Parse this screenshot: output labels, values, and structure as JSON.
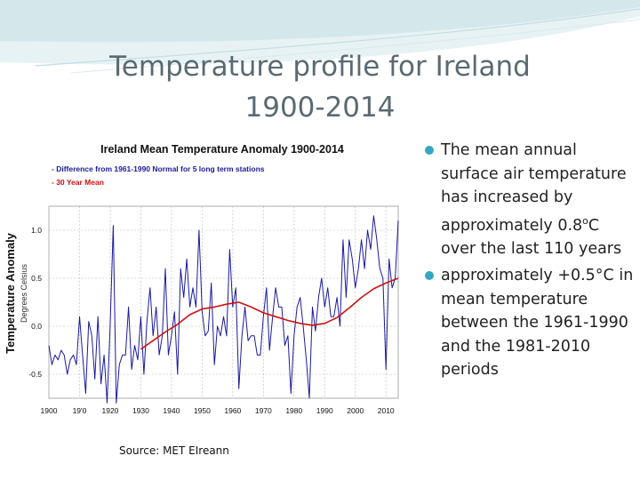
{
  "slide": {
    "title_line1": "Temperature profile for Ireland",
    "title_line2": "1900-2014",
    "source": "Source: MET EIreann",
    "bullets": [
      {
        "text": "The mean annual surface air temperature has increased by approximately 0.8",
        "sup": "o",
        "after": "C over the last 110 years"
      },
      {
        "text": "approximately +0.5°C in mean temperature between the 1961-1990 and the 1981-2010 periods",
        "sup": "",
        "after": ""
      }
    ],
    "accent_color": "#34a7c4"
  },
  "chart_data": {
    "type": "line",
    "title": "Ireland Mean Temperature Anomaly 1900-2014",
    "ylabel": "Temperature Anomaly",
    "ylabel_sub": "Degrees Celsius",
    "legend": [
      {
        "label": "- Difference from 1961-1990 Normal for 5 long term stations",
        "color": "#1a1a9c"
      },
      {
        "label": "- 30 Year Mean",
        "color": "#cc1111"
      }
    ],
    "legend_position": "top-left",
    "xlim": [
      1900,
      2014
    ],
    "ylim": [
      -0.75,
      1.25
    ],
    "x_ticks": [
      1900,
      1910,
      1920,
      1930,
      1940,
      1950,
      1960,
      1970,
      1980,
      1990,
      2000,
      2010
    ],
    "x_tick_labels": [
      "1900",
      "19'0",
      "1920",
      "1930",
      "1940",
      "1950",
      "1960",
      "1970",
      "1980",
      "1990",
      "2000",
      "2010"
    ],
    "y_ticks": [
      -0.5,
      0.0,
      0.5,
      1.0
    ],
    "y_tick_labels": [
      "-0.5",
      "0.0",
      "0.5",
      "1.0"
    ],
    "grid": true,
    "series": [
      {
        "name": "Difference from 1961-1990 Normal for 5 long term stations",
        "color": "#1a1a9c",
        "x": [
          1900,
          1901,
          1902,
          1903,
          1904,
          1905,
          1906,
          1907,
          1908,
          1909,
          1910,
          1911,
          1912,
          1913,
          1914,
          1915,
          1916,
          1917,
          1918,
          1919,
          1920,
          1921,
          1922,
          1923,
          1924,
          1925,
          1926,
          1927,
          1928,
          1929,
          1930,
          1931,
          1932,
          1933,
          1934,
          1935,
          1936,
          1937,
          1938,
          1939,
          1940,
          1941,
          1942,
          1943,
          1944,
          1945,
          1946,
          1947,
          1948,
          1949,
          1950,
          1951,
          1952,
          1953,
          1954,
          1955,
          1956,
          1957,
          1958,
          1959,
          1960,
          1961,
          1962,
          1963,
          1964,
          1965,
          1966,
          1967,
          1968,
          1969,
          1970,
          1971,
          1972,
          1973,
          1974,
          1975,
          1976,
          1977,
          1978,
          1979,
          1980,
          1981,
          1982,
          1983,
          1984,
          1985,
          1986,
          1987,
          1988,
          1989,
          1990,
          1991,
          1992,
          1993,
          1994,
          1995,
          1996,
          1997,
          1998,
          1999,
          2000,
          2001,
          2002,
          2003,
          2004,
          2005,
          2006,
          2007,
          2008,
          2009,
          2010,
          2011,
          2012,
          2013,
          2014
        ],
        "values": [
          -0.2,
          -0.4,
          -0.3,
          -0.35,
          -0.25,
          -0.3,
          -0.5,
          -0.35,
          -0.3,
          -0.4,
          0.1,
          -0.3,
          -0.7,
          0.05,
          -0.1,
          -0.55,
          0.1,
          -0.6,
          -0.3,
          -0.8,
          0.0,
          1.05,
          -0.8,
          -0.4,
          -0.3,
          -0.3,
          0.2,
          -0.45,
          -0.2,
          -0.35,
          0.1,
          -0.5,
          0.05,
          0.4,
          -0.1,
          0.2,
          -0.3,
          -0.1,
          0.6,
          -0.3,
          -0.1,
          0.15,
          -0.5,
          0.6,
          0.3,
          0.7,
          0.2,
          0.4,
          0.2,
          1.0,
          0.15,
          -0.1,
          -0.05,
          0.45,
          -0.4,
          0.0,
          -0.1,
          0.1,
          -0.1,
          0.8,
          0.2,
          0.4,
          -0.65,
          -0.1,
          0.2,
          -0.15,
          -0.1,
          -0.1,
          -0.3,
          -0.3,
          0.1,
          0.4,
          -0.25,
          0.1,
          0.4,
          0.2,
          0.2,
          -0.2,
          -0.1,
          -0.7,
          -0.1,
          0.2,
          0.3,
          0.0,
          -0.35,
          -0.75,
          0.2,
          -0.05,
          0.3,
          0.5,
          0.2,
          0.4,
          0.1,
          0.1,
          0.3,
          0.0,
          0.9,
          0.3,
          0.9,
          0.7,
          0.4,
          0.6,
          0.9,
          0.6,
          1.0,
          0.8,
          1.15,
          0.9,
          0.6,
          0.5,
          -0.45,
          0.7,
          0.4,
          0.5,
          1.1
        ]
      },
      {
        "name": "30 Year Mean",
        "color": "#cc1111",
        "x": [
          1930,
          1934,
          1938,
          1942,
          1946,
          1950,
          1954,
          1958,
          1962,
          1966,
          1970,
          1974,
          1978,
          1982,
          1986,
          1990,
          1994,
          1998,
          2002,
          2006,
          2010,
          2014
        ],
        "values": [
          -0.24,
          -0.15,
          -0.06,
          0.02,
          0.12,
          0.18,
          0.2,
          0.23,
          0.25,
          0.2,
          0.14,
          0.1,
          0.06,
          0.03,
          0.01,
          0.03,
          0.09,
          0.19,
          0.3,
          0.39,
          0.45,
          0.5
        ]
      }
    ]
  }
}
